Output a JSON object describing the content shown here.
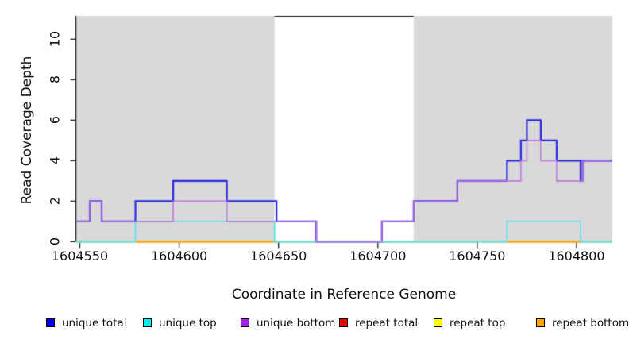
{
  "chart_data": {
    "type": "line",
    "subtype": "step-post",
    "title": "",
    "xlabel": "Coordinate in Reference Genome",
    "ylabel": "Read Coverage Depth",
    "xlim": [
      1604548,
      1604818
    ],
    "ylim": [
      0,
      11.15
    ],
    "x_ticks": [
      1604550,
      1604600,
      1604650,
      1604700,
      1604750,
      1604800
    ],
    "y_ticks": [
      0,
      2,
      4,
      6,
      8,
      10
    ],
    "grid": false,
    "background_color": "#FFFFFF",
    "shaded_region_color": "#D9D9D9",
    "shaded_regions": [
      {
        "x0": 1604548,
        "x1": 1604648
      },
      {
        "x0": 1604718,
        "x1": 1604818
      }
    ],
    "series": [
      {
        "name": "unique total",
        "legend_color": "#0000EE",
        "line_color": "#2B2BE0",
        "paths": [
          [
            [
              1604548,
              1
            ],
            [
              1604555,
              2
            ],
            [
              1604561,
              1
            ],
            [
              1604578,
              2
            ],
            [
              1604597,
              3
            ],
            [
              1604624,
              2
            ],
            [
              1604649,
              1
            ],
            [
              1604669,
              0
            ],
            [
              1604702,
              1
            ],
            [
              1604718,
              2
            ],
            [
              1604740,
              3
            ],
            [
              1604765,
              4
            ],
            [
              1604772,
              5
            ],
            [
              1604775,
              6
            ],
            [
              1604782,
              5
            ],
            [
              1604790,
              4
            ],
            [
              1604802,
              3
            ],
            [
              1604803,
              4
            ],
            [
              1604818,
              4
            ]
          ]
        ]
      },
      {
        "name": "unique top",
        "legend_color": "#00EEEE",
        "line_color": "#66E4E8",
        "paths": [
          [
            [
              1604548,
              0
            ],
            [
              1604578,
              1
            ],
            [
              1604648,
              0
            ],
            [
              1604765,
              1
            ],
            [
              1604802,
              0
            ],
            [
              1604818,
              0
            ]
          ]
        ]
      },
      {
        "name": "unique bottom",
        "legend_color": "#A020F0",
        "line_color": "#BD6FE0",
        "paths": [
          [
            [
              1604548,
              1
            ],
            [
              1604555,
              2
            ],
            [
              1604561,
              1
            ],
            [
              1604578,
              1
            ],
            [
              1604597,
              2
            ],
            [
              1604624,
              1
            ],
            [
              1604669,
              0
            ],
            [
              1604702,
              1
            ],
            [
              1604718,
              2
            ],
            [
              1604740,
              3
            ],
            [
              1604765,
              3
            ],
            [
              1604772,
              4
            ],
            [
              1604775,
              5
            ],
            [
              1604782,
              4
            ],
            [
              1604790,
              3
            ],
            [
              1604803,
              4
            ],
            [
              1604818,
              4
            ]
          ]
        ]
      },
      {
        "name": "repeat total",
        "legend_color": "#EE0000",
        "line_color": "#EE0000",
        "paths": [
          [
            [
              1604548,
              0
            ],
            [
              1604818,
              0
            ]
          ]
        ]
      },
      {
        "name": "repeat top",
        "legend_color": "#FFFF00",
        "line_color": "#FFFF00",
        "paths": [
          [
            [
              1604548,
              0
            ],
            [
              1604818,
              0
            ]
          ]
        ]
      },
      {
        "name": "repeat bottom",
        "legend_color": "#FFA500",
        "line_color": "#FFA416",
        "paths": [
          [
            [
              1604578,
              0
            ],
            [
              1604648,
              0
            ]
          ],
          [
            [
              1604765,
              0
            ],
            [
              1604802,
              0
            ]
          ]
        ]
      },
      {
        "name": "baseline",
        "legend_color": null,
        "line_color": "#7CC87C",
        "paths": [
          [
            [
              1604548,
              0
            ],
            [
              1604818,
              0
            ]
          ]
        ]
      }
    ],
    "legend": [
      {
        "label": "unique total",
        "color": "#0000EE"
      },
      {
        "label": "unique top",
        "color": "#00EEEE"
      },
      {
        "label": "unique bottom",
        "color": "#A020F0"
      },
      {
        "label": "repeat total",
        "color": "#EE0000"
      },
      {
        "label": "repeat top",
        "color": "#FFFF00"
      },
      {
        "label": "repeat bottom",
        "color": "#FFA500"
      }
    ],
    "legend_position": "bottom"
  }
}
